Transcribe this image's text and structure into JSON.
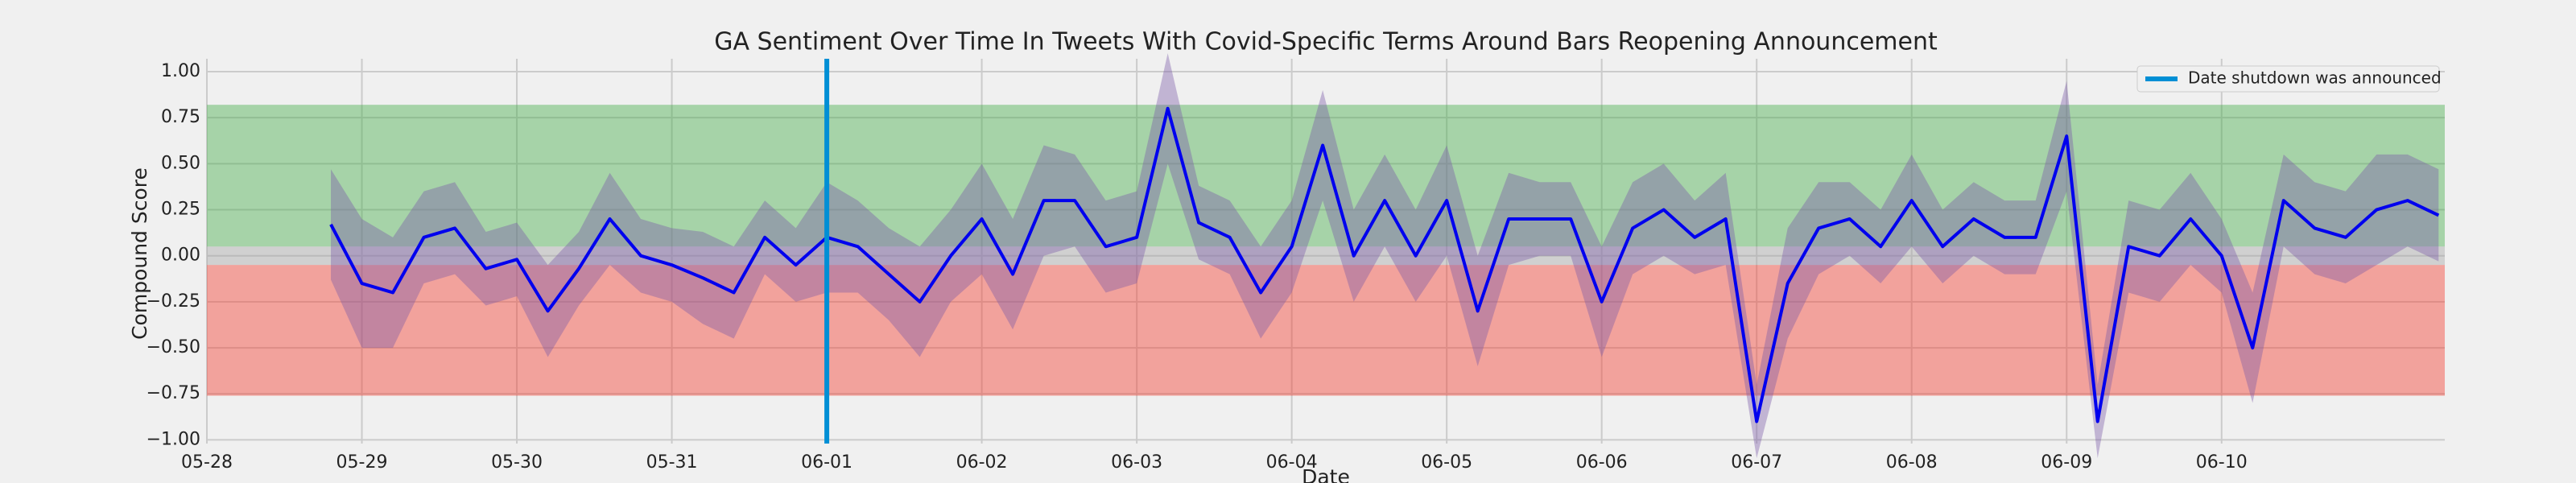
{
  "chart_data": {
    "type": "line",
    "title": "GA Sentiment Over Time In Tweets With Covid-Specific Terms Around Bars Reopening Announcement",
    "xlabel": "Date",
    "ylabel": "Compound Score",
    "x": [
      0.8,
      1.0,
      1.2,
      1.4,
      1.6,
      1.8,
      2.0,
      2.2,
      2.4,
      2.6,
      2.8,
      3.0,
      3.2,
      3.4,
      3.6,
      3.8,
      4.0,
      4.2,
      4.4,
      4.6,
      4.8,
      5.0,
      5.2,
      5.4,
      5.6,
      5.8,
      6.0,
      6.2,
      6.4,
      6.6,
      6.8,
      7.0,
      7.2,
      7.4,
      7.6,
      7.8,
      8.0,
      8.2,
      8.4,
      8.6,
      8.8,
      9.0,
      9.2,
      9.4,
      9.6,
      9.8,
      10.0,
      10.2,
      10.4,
      10.6,
      10.8,
      11.0,
      11.2,
      11.4,
      11.6,
      11.8,
      12.0,
      12.2,
      12.4,
      12.6,
      12.8,
      13.0,
      13.2,
      13.4,
      13.6,
      13.8,
      14.0,
      14.2,
      14.4
    ],
    "values": [
      0.17,
      -0.15,
      -0.2,
      0.1,
      0.15,
      -0.07,
      -0.02,
      -0.3,
      -0.07,
      0.2,
      0.0,
      -0.05,
      -0.12,
      -0.2,
      0.1,
      -0.05,
      0.1,
      0.05,
      -0.1,
      -0.25,
      0.0,
      0.2,
      -0.1,
      0.3,
      0.3,
      0.05,
      0.1,
      0.8,
      0.18,
      0.1,
      -0.2,
      0.05,
      0.6,
      0.0,
      0.3,
      0.0,
      0.3,
      -0.3,
      0.2,
      0.2,
      0.2,
      -0.25,
      0.15,
      0.25,
      0.1,
      0.2,
      -0.9,
      -0.15,
      0.15,
      0.2,
      0.05,
      0.3,
      0.05,
      0.2,
      0.1,
      0.1,
      0.65,
      -0.9,
      0.05,
      0.0,
      0.2,
      0.0,
      -0.5,
      0.3,
      0.15,
      0.1,
      0.25,
      0.3,
      0.22
    ],
    "spread": [
      0.3,
      0.35,
      0.3,
      0.25,
      0.25,
      0.2,
      0.2,
      0.25,
      0.2,
      0.25,
      0.2,
      0.2,
      0.25,
      0.25,
      0.2,
      0.2,
      0.3,
      0.25,
      0.25,
      0.3,
      0.25,
      0.3,
      0.3,
      0.3,
      0.25,
      0.25,
      0.25,
      0.3,
      0.2,
      0.2,
      0.25,
      0.25,
      0.3,
      0.25,
      0.25,
      0.25,
      0.3,
      0.3,
      0.25,
      0.2,
      0.2,
      0.3,
      0.25,
      0.25,
      0.2,
      0.25,
      0.2,
      0.3,
      0.25,
      0.2,
      0.2,
      0.25,
      0.2,
      0.2,
      0.2,
      0.2,
      0.3,
      0.2,
      0.25,
      0.25,
      0.25,
      0.2,
      0.3,
      0.25,
      0.25,
      0.25,
      0.3,
      0.25,
      0.25
    ],
    "color": "#0000ee",
    "band_color": "#7a5aa8",
    "regions": [
      {
        "from": 0.05,
        "to": 0.82,
        "color": "#4caf50"
      },
      {
        "from": -0.05,
        "to": 0.05,
        "color": "#a9a9a9"
      },
      {
        "from": -0.76,
        "to": -0.05,
        "color": "#f44336"
      }
    ],
    "vline": {
      "x": 4,
      "label": "Date shutdown was announced",
      "color": "#008fd5"
    },
    "xlim": [
      0,
      14.44
    ],
    "ylim": [
      -1.02,
      1.07
    ],
    "xticks": [
      {
        "value": 0,
        "label": "05-28"
      },
      {
        "value": 1,
        "label": "05-29"
      },
      {
        "value": 2,
        "label": "05-30"
      },
      {
        "value": 3,
        "label": "05-31"
      },
      {
        "value": 4,
        "label": "06-01"
      },
      {
        "value": 5,
        "label": "06-02"
      },
      {
        "value": 6,
        "label": "06-03"
      },
      {
        "value": 7,
        "label": "06-04"
      },
      {
        "value": 8,
        "label": "06-05"
      },
      {
        "value": 9,
        "label": "06-06"
      },
      {
        "value": 10,
        "label": "06-07"
      },
      {
        "value": 11,
        "label": "06-08"
      },
      {
        "value": 12,
        "label": "06-09"
      },
      {
        "value": 13,
        "label": "06-10"
      }
    ],
    "yticks": [
      {
        "value": -1,
        "label": "−1.00"
      },
      {
        "value": -0.75,
        "label": "−0.75"
      },
      {
        "value": -0.5,
        "label": "−0.50"
      },
      {
        "value": -0.25,
        "label": "−0.25"
      },
      {
        "value": 0,
        "label": "0.00"
      },
      {
        "value": 0.25,
        "label": "0.25"
      },
      {
        "value": 0.5,
        "label": "0.50"
      },
      {
        "value": 0.75,
        "label": "0.75"
      },
      {
        "value": 1,
        "label": "1.00"
      }
    ],
    "grid": true
  }
}
